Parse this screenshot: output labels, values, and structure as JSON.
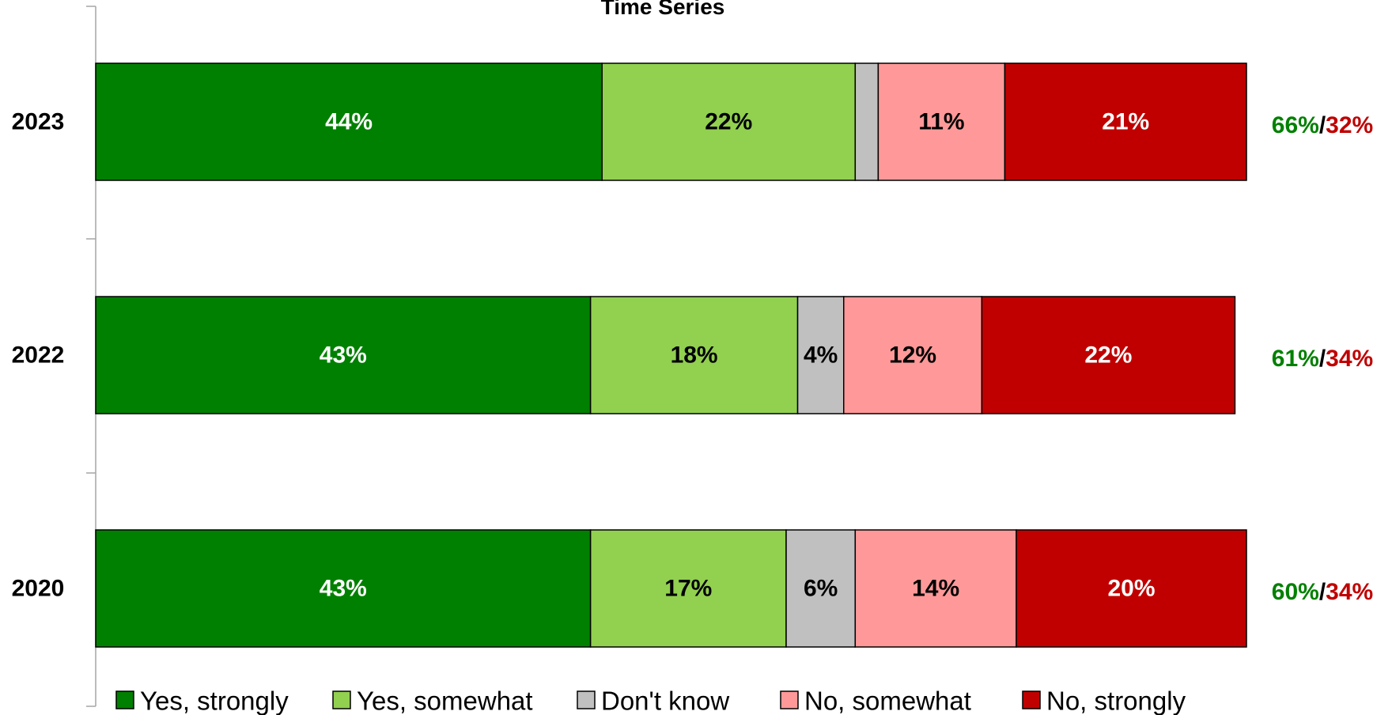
{
  "chart_data": {
    "type": "bar",
    "orientation": "horizontal-stacked",
    "title": "Time Series",
    "categories": [
      "2023",
      "2022",
      "2020"
    ],
    "series": [
      {
        "name": "Yes, strongly",
        "values": [
          44,
          43,
          43
        ],
        "labels": [
          "44%",
          "43%",
          "43%"
        ],
        "color": "#008000",
        "label_color": "#ffffff"
      },
      {
        "name": "Yes, somewhat",
        "values": [
          22,
          18,
          17
        ],
        "labels": [
          "22%",
          "18%",
          "17%"
        ],
        "color": "#92d050",
        "label_color": "#000000"
      },
      {
        "name": "Don't know",
        "values": [
          2,
          4,
          6
        ],
        "labels": [
          "",
          "4%",
          "6%"
        ],
        "color": "#c0c0c0",
        "label_color": "#000000"
      },
      {
        "name": "No, somewhat",
        "values": [
          11,
          12,
          14
        ],
        "labels": [
          "11%",
          "12%",
          "14%"
        ],
        "color": "#ff9999",
        "label_color": "#000000"
      },
      {
        "name": "No, strongly",
        "values": [
          21,
          22,
          20
        ],
        "labels": [
          "21%",
          "22%",
          "20%"
        ],
        "color": "#c00000",
        "label_color": "#ffffff"
      }
    ],
    "summaries": [
      {
        "yes": "66%",
        "sep": "/",
        "no": "32%"
      },
      {
        "yes": "61%",
        "sep": "/",
        "no": "34%"
      },
      {
        "yes": "60%",
        "sep": "/",
        "no": "34%"
      }
    ],
    "summary_colors": {
      "yes": "#008000",
      "sep": "#000000",
      "no": "#c00000"
    },
    "xlim": [
      0,
      100
    ],
    "grid": false,
    "legend": "bottom"
  }
}
